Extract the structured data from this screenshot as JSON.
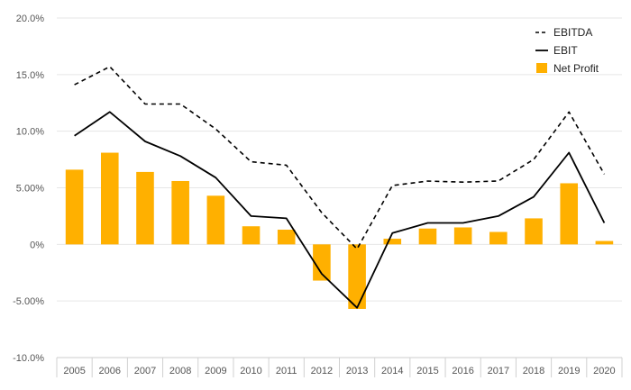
{
  "chart_data": {
    "type": "bar",
    "categories": [
      "2005",
      "2006",
      "2007",
      "2008",
      "2009",
      "2010",
      "2011",
      "2012",
      "2013",
      "2014",
      "2015",
      "2016",
      "2017",
      "2018",
      "2019",
      "2020"
    ],
    "y_ticks": [
      "20.0%",
      "15.0%",
      "10.0%",
      "5.00%",
      "0%",
      "-5.00%",
      "-10.0%"
    ],
    "y_tick_values": [
      20,
      15,
      10,
      5,
      0,
      -5,
      -10
    ],
    "ylim": [
      -10,
      20
    ],
    "grid": true,
    "legend_position": "top-right",
    "series": [
      {
        "name": "EBITDA",
        "type": "line",
        "style": "dashed",
        "color": "#000000",
        "values": [
          14.1,
          15.7,
          12.4,
          12.4,
          10.2,
          7.3,
          7.0,
          2.8,
          -0.4,
          5.2,
          5.6,
          5.5,
          5.6,
          7.5,
          11.7,
          6.2
        ]
      },
      {
        "name": "EBIT",
        "type": "line",
        "style": "solid",
        "color": "#000000",
        "values": [
          9.6,
          11.7,
          9.1,
          7.8,
          5.9,
          2.5,
          2.3,
          -2.6,
          -5.6,
          1.0,
          1.9,
          1.9,
          2.5,
          4.2,
          8.1,
          1.9
        ]
      },
      {
        "name": "Net Profit",
        "type": "bar",
        "color": "#FFB000",
        "values": [
          6.6,
          8.1,
          6.4,
          5.6,
          4.3,
          1.6,
          1.3,
          -3.2,
          -5.7,
          0.5,
          1.4,
          1.5,
          1.1,
          2.3,
          5.4,
          0.3
        ]
      }
    ]
  }
}
